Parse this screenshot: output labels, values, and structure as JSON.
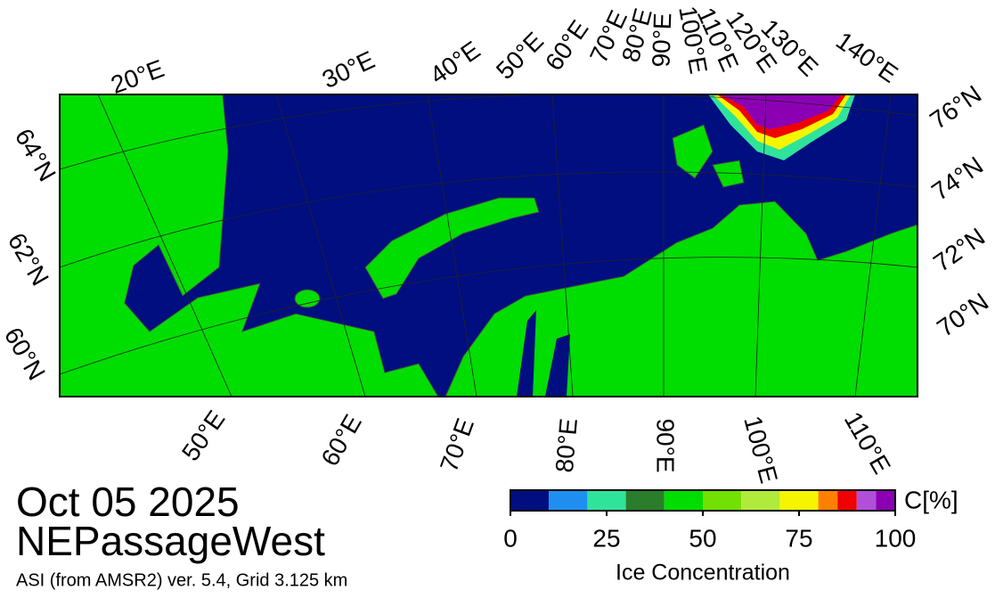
{
  "title": "Oct 05 2025",
  "region": "NEPassageWest",
  "subtitle": "ASI (from AMSR2) ver. 5.4,  Grid 3.125 km",
  "graticule": {
    "top": [
      "20°E",
      "30°E",
      "40°E",
      "50°E",
      "60°E",
      "70°E",
      "80°E",
      "90°E",
      "100°E",
      "110°E",
      "120°E",
      "130°E",
      "140°E"
    ],
    "left": [
      "64°N",
      "62°N",
      "60°N"
    ],
    "right": [
      "76°N",
      "74°N",
      "72°N",
      "70°N"
    ],
    "bottom": [
      "50°E",
      "60°E",
      "70°E",
      "80°E",
      "90°E",
      "100°E",
      "110°E"
    ]
  },
  "colorbar": {
    "lim": [
      0,
      100
    ],
    "ticks": [
      0,
      25,
      50,
      75,
      100
    ],
    "bounds": [
      0,
      10,
      20,
      30,
      40,
      50,
      60,
      70,
      80,
      85,
      90,
      95,
      100
    ],
    "colors": [
      "#000e80",
      "#1e8ff0",
      "#2fe39a",
      "#2a7d2a",
      "#00dd00",
      "#72e000",
      "#b0ea3a",
      "#f5f500",
      "#ff8000",
      "#f00000",
      "#b050d8",
      "#8c00b4"
    ],
    "unit_label": "C[%]",
    "label": "Ice Concentration"
  }
}
